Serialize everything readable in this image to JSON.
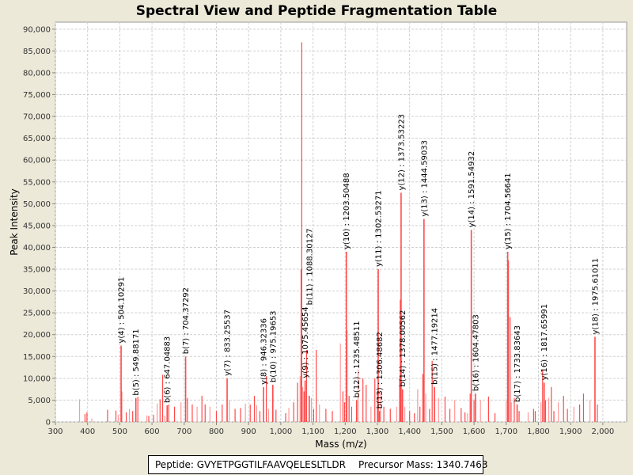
{
  "chart_data": {
    "type": "bar",
    "title": "Spectral View and Peptide Fragmentation Table",
    "xlabel": "Mass (m/z)",
    "ylabel": "Peak Intensity",
    "xlim": [
      300,
      2074
    ],
    "ylim": [
      0,
      91600
    ],
    "xticks": [
      300,
      400,
      500,
      600,
      700,
      800,
      900,
      1000,
      1100,
      1200,
      1300,
      1400,
      1500,
      1600,
      1700,
      1800,
      1900,
      2000
    ],
    "xtick_labels": [
      "300",
      "400",
      "500",
      "600",
      "700",
      "800",
      "900",
      "1,000",
      "1,100",
      "1,200",
      "1,300",
      "1,400",
      "1,500",
      "1,600",
      "1,700",
      "1,800",
      "1,900",
      "2,000"
    ],
    "yticks": [
      0,
      5000,
      10000,
      15000,
      20000,
      25000,
      30000,
      35000,
      40000,
      45000,
      50000,
      55000,
      60000,
      65000,
      70000,
      75000,
      80000,
      85000,
      90000
    ],
    "ytick_labels": [
      "0",
      "5,000",
      "10,000",
      "15,000",
      "20,000",
      "25,000",
      "30,000",
      "35,000",
      "40,000",
      "45,000",
      "50,000",
      "55,000",
      "60,000",
      "65,000",
      "70,000",
      "75,000",
      "80,000",
      "85,000",
      "90,000"
    ],
    "grid": true,
    "peak_color": "#FF4A4A",
    "labeled_peaks": [
      {
        "label": "y(4) : 504.10291",
        "mz": 504.1,
        "intensity": 17500
      },
      {
        "label": "b(5) : 549.88171",
        "mz": 549.9,
        "intensity": 5500
      },
      {
        "label": "b(6) : 647.04883",
        "mz": 647.0,
        "intensity": 3800
      },
      {
        "label": "b(7) : 704.37292",
        "mz": 704.4,
        "intensity": 15000
      },
      {
        "label": "y(7) : 833.25537",
        "mz": 833.3,
        "intensity": 10000
      },
      {
        "label": "y(8) : 946.32336",
        "mz": 946.3,
        "intensity": 8000
      },
      {
        "label": "b(10) : 975.19653",
        "mz": 975.2,
        "intensity": 8500
      },
      {
        "label": "y(9) : 1075.45654",
        "mz": 1075.5,
        "intensity": 9500
      },
      {
        "label": "b(11) : 1088.30127",
        "mz": 1088.3,
        "intensity": 6000
      },
      {
        "label": "y(10) : 1203.50488",
        "mz": 1203.5,
        "intensity": 39000
      },
      {
        "label": "b(12) : 1235.48511",
        "mz": 1235.5,
        "intensity": 5000
      },
      {
        "label": "y(11) : 1302.53271",
        "mz": 1302.5,
        "intensity": 35000
      },
      {
        "label": "b(13) : 1306.48682",
        "mz": 1306.5,
        "intensity": 2500
      },
      {
        "label": "y(12) : 1373.53223",
        "mz": 1373.5,
        "intensity": 52500
      },
      {
        "label": "b(14) : 1378.00562",
        "mz": 1378.0,
        "intensity": 7500
      },
      {
        "label": "y(13) : 1444.59033",
        "mz": 1444.6,
        "intensity": 46500
      },
      {
        "label": "b(15) : 1477.19214",
        "mz": 1477.2,
        "intensity": 8000
      },
      {
        "label": "y(14) : 1591.54932",
        "mz": 1591.5,
        "intensity": 44000
      },
      {
        "label": "b(16) : 1604.47803",
        "mz": 1604.5,
        "intensity": 6500
      },
      {
        "label": "y(15) : 1704.56641",
        "mz": 1704.6,
        "intensity": 39000
      },
      {
        "label": "b(17) : 1733.83643",
        "mz": 1733.8,
        "intensity": 4000
      },
      {
        "label": "y(16) : 1817.65991",
        "mz": 1817.7,
        "intensity": 9000
      },
      {
        "label": "y(18) : 1975.61011",
        "mz": 1975.6,
        "intensity": 19500
      }
    ],
    "other_peaks": [
      [
        375,
        5200
      ],
      [
        392,
        1800
      ],
      [
        398,
        2200
      ],
      [
        413,
        800
      ],
      [
        462,
        2800
      ],
      [
        488,
        2600
      ],
      [
        495,
        1600
      ],
      [
        506,
        7000
      ],
      [
        520,
        2200
      ],
      [
        530,
        3000
      ],
      [
        540,
        2500
      ],
      [
        556,
        5800
      ],
      [
        584,
        1500
      ],
      [
        590,
        1400
      ],
      [
        605,
        1600
      ],
      [
        616,
        4200
      ],
      [
        625,
        5200
      ],
      [
        633,
        10800
      ],
      [
        640,
        1500
      ],
      [
        652,
        4000
      ],
      [
        670,
        3500
      ],
      [
        690,
        4500
      ],
      [
        710,
        5500
      ],
      [
        725,
        4000
      ],
      [
        740,
        3500
      ],
      [
        755,
        6000
      ],
      [
        765,
        4000
      ],
      [
        780,
        3500
      ],
      [
        800,
        2500
      ],
      [
        818,
        4000
      ],
      [
        840,
        5000
      ],
      [
        858,
        3000
      ],
      [
        875,
        3200
      ],
      [
        890,
        4200
      ],
      [
        905,
        4000
      ],
      [
        918,
        6000
      ],
      [
        925,
        3800
      ],
      [
        935,
        2500
      ],
      [
        955,
        10500
      ],
      [
        962,
        3000
      ],
      [
        985,
        2800
      ],
      [
        1015,
        2000
      ],
      [
        1025,
        3200
      ],
      [
        1040,
        4500
      ],
      [
        1052,
        9000
      ],
      [
        1060,
        10500
      ],
      [
        1063,
        35000
      ],
      [
        1065,
        87000
      ],
      [
        1068,
        8000
      ],
      [
        1072,
        7000
      ],
      [
        1080,
        16500
      ],
      [
        1095,
        5500
      ],
      [
        1102,
        3000
      ],
      [
        1110,
        16500
      ],
      [
        1120,
        4000
      ],
      [
        1140,
        3000
      ],
      [
        1160,
        2500
      ],
      [
        1185,
        18000
      ],
      [
        1193,
        7000
      ],
      [
        1198,
        4500
      ],
      [
        1206,
        21000
      ],
      [
        1212,
        6000
      ],
      [
        1220,
        3500
      ],
      [
        1240,
        12000
      ],
      [
        1255,
        10000
      ],
      [
        1265,
        8500
      ],
      [
        1280,
        3500
      ],
      [
        1292,
        10000
      ],
      [
        1300,
        7000
      ],
      [
        1310,
        7000
      ],
      [
        1320,
        3500
      ],
      [
        1340,
        3000
      ],
      [
        1360,
        3500
      ],
      [
        1369,
        10000
      ],
      [
        1371,
        28000
      ],
      [
        1385,
        3500
      ],
      [
        1400,
        2500
      ],
      [
        1415,
        2000
      ],
      [
        1425,
        7500
      ],
      [
        1432,
        3500
      ],
      [
        1441,
        11000
      ],
      [
        1450,
        6500
      ],
      [
        1462,
        3000
      ],
      [
        1470,
        14000
      ],
      [
        1490,
        5500
      ],
      [
        1510,
        5800
      ],
      [
        1525,
        3000
      ],
      [
        1540,
        5000
      ],
      [
        1560,
        3200
      ],
      [
        1572,
        2200
      ],
      [
        1580,
        2000
      ],
      [
        1588,
        6500
      ],
      [
        1600,
        5000
      ],
      [
        1620,
        5000
      ],
      [
        1645,
        5800
      ],
      [
        1665,
        2000
      ],
      [
        1700,
        5000
      ],
      [
        1707,
        37000
      ],
      [
        1712,
        24000
      ],
      [
        1716,
        4500
      ],
      [
        1725,
        5500
      ],
      [
        1740,
        2500
      ],
      [
        1768,
        2200
      ],
      [
        1785,
        3000
      ],
      [
        1790,
        2500
      ],
      [
        1808,
        4500
      ],
      [
        1813,
        12000
      ],
      [
        1822,
        5000
      ],
      [
        1832,
        5500
      ],
      [
        1840,
        8000
      ],
      [
        1848,
        2500
      ],
      [
        1862,
        4500
      ],
      [
        1878,
        6000
      ],
      [
        1890,
        3000
      ],
      [
        1910,
        3500
      ],
      [
        1928,
        4000
      ],
      [
        1940,
        6500
      ],
      [
        1960,
        5000
      ],
      [
        1983,
        4000
      ]
    ]
  },
  "footer": {
    "peptide": "Peptide: GVYETPGGTILFAAVQELESLTLDR",
    "precursor": "Precursor Mass: 1340.7463"
  }
}
